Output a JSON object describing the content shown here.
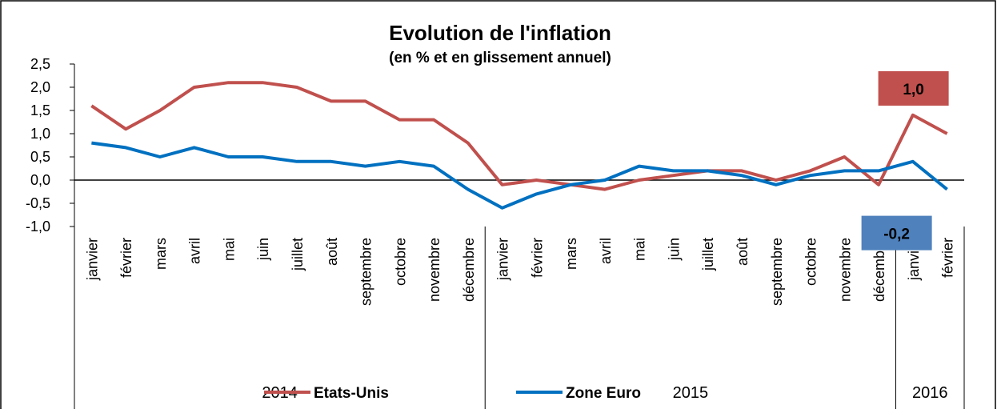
{
  "chart_data": {
    "type": "line",
    "title": "Evolution de l'inflation",
    "subtitle": "(en % et en glissement annuel)",
    "categories": [
      "janvier",
      "février",
      "mars",
      "avril",
      "mai",
      "juin",
      "juillet",
      "août",
      "septembre",
      "octobre",
      "novembre",
      "décembre",
      "janvier",
      "février",
      "mars",
      "avril",
      "mai",
      "juin",
      "juillet",
      "août",
      "septembre",
      "octobre",
      "novembre",
      "décembre",
      "janvier",
      "février"
    ],
    "groups": [
      {
        "label": "2014",
        "size": 12
      },
      {
        "label": "2015",
        "size": 12
      },
      {
        "label": "2016",
        "size": 2
      }
    ],
    "series": [
      {
        "name": "Etats-Unis",
        "color": "#c0504d",
        "values": [
          1.6,
          1.1,
          1.5,
          2.0,
          2.1,
          2.1,
          2.0,
          1.7,
          1.7,
          1.3,
          1.3,
          0.8,
          -0.1,
          0.0,
          -0.1,
          -0.2,
          0.0,
          0.1,
          0.2,
          0.2,
          0.0,
          0.2,
          0.5,
          -0.1,
          1.4,
          1.0
        ],
        "value_labels": [
          null,
          null,
          null,
          null,
          null,
          null,
          null,
          null,
          null,
          null,
          null,
          null,
          null,
          null,
          null,
          null,
          null,
          null,
          null,
          null,
          null,
          null,
          null,
          null,
          null,
          "1,0"
        ]
      },
      {
        "name": "Zone Euro",
        "color": "#0070c0",
        "values": [
          0.8,
          0.7,
          0.5,
          0.7,
          0.5,
          0.5,
          0.4,
          0.4,
          0.3,
          0.4,
          0.3,
          -0.2,
          -0.6,
          -0.3,
          -0.1,
          0.0,
          0.3,
          0.2,
          0.2,
          0.1,
          -0.1,
          0.1,
          0.2,
          0.2,
          0.4,
          -0.2
        ],
        "value_labels": [
          null,
          null,
          null,
          null,
          null,
          null,
          null,
          null,
          null,
          null,
          null,
          null,
          null,
          null,
          null,
          null,
          null,
          null,
          null,
          null,
          null,
          null,
          null,
          null,
          null,
          "-0,2"
        ]
      }
    ],
    "ylim": [
      -1.0,
      2.5
    ],
    "yticks": [
      {
        "value": -1.0,
        "label": "-1,0"
      },
      {
        "value": -0.5,
        "label": "-0,5"
      },
      {
        "value": 0,
        "label": "0,0"
      },
      {
        "value": 0.5,
        "label": "0,5"
      },
      {
        "value": 1.0,
        "label": "1,0"
      },
      {
        "value": 1.5,
        "label": "1,5"
      },
      {
        "value": 2.0,
        "label": "2,0"
      },
      {
        "value": 2.5,
        "label": "2,5"
      }
    ],
    "grid": false,
    "legend": "bottom"
  }
}
